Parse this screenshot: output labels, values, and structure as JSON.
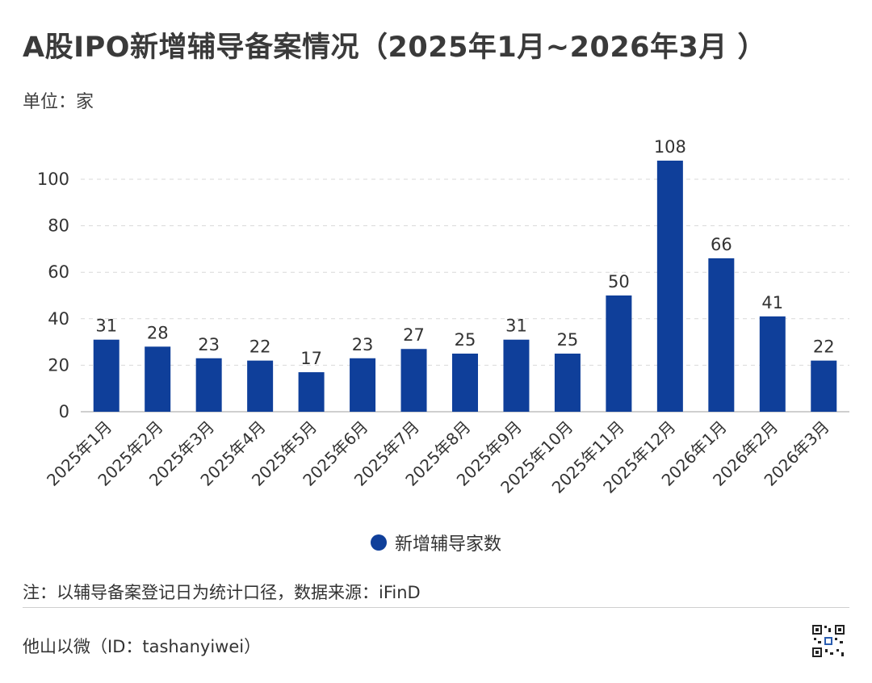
{
  "title": "A股IPO新增辅导备案情况（2025年1月~2026年3月 ）",
  "unit_label": "单位：家",
  "note": "注：以辅导备案登记日为统计口径，数据来源：iFinD",
  "footer": "他山以微（ID：tashanyiwei）",
  "colors": {
    "bar": "#0f3f9a",
    "grid": "#d9d9d9",
    "axis": "#bfbfbf",
    "text": "#333333"
  },
  "chart_data": {
    "type": "bar",
    "categories": [
      "2025年1月",
      "2025年2月",
      "2025年3月",
      "2025年4月",
      "2025年5月",
      "2025年6月",
      "2025年7月",
      "2025年8月",
      "2025年9月",
      "2025年10月",
      "2025年11月",
      "2025年12月",
      "2026年1月",
      "2026年2月",
      "2026年3月"
    ],
    "series": [
      {
        "name": "新增辅导家数",
        "values": [
          31,
          28,
          23,
          22,
          17,
          23,
          27,
          25,
          31,
          25,
          50,
          108,
          66,
          41,
          22
        ]
      }
    ],
    "ylim": [
      0,
      120
    ],
    "yticks": [
      0,
      20,
      40,
      60,
      80,
      100
    ],
    "grid": true,
    "legend_position": "bottom-center"
  }
}
